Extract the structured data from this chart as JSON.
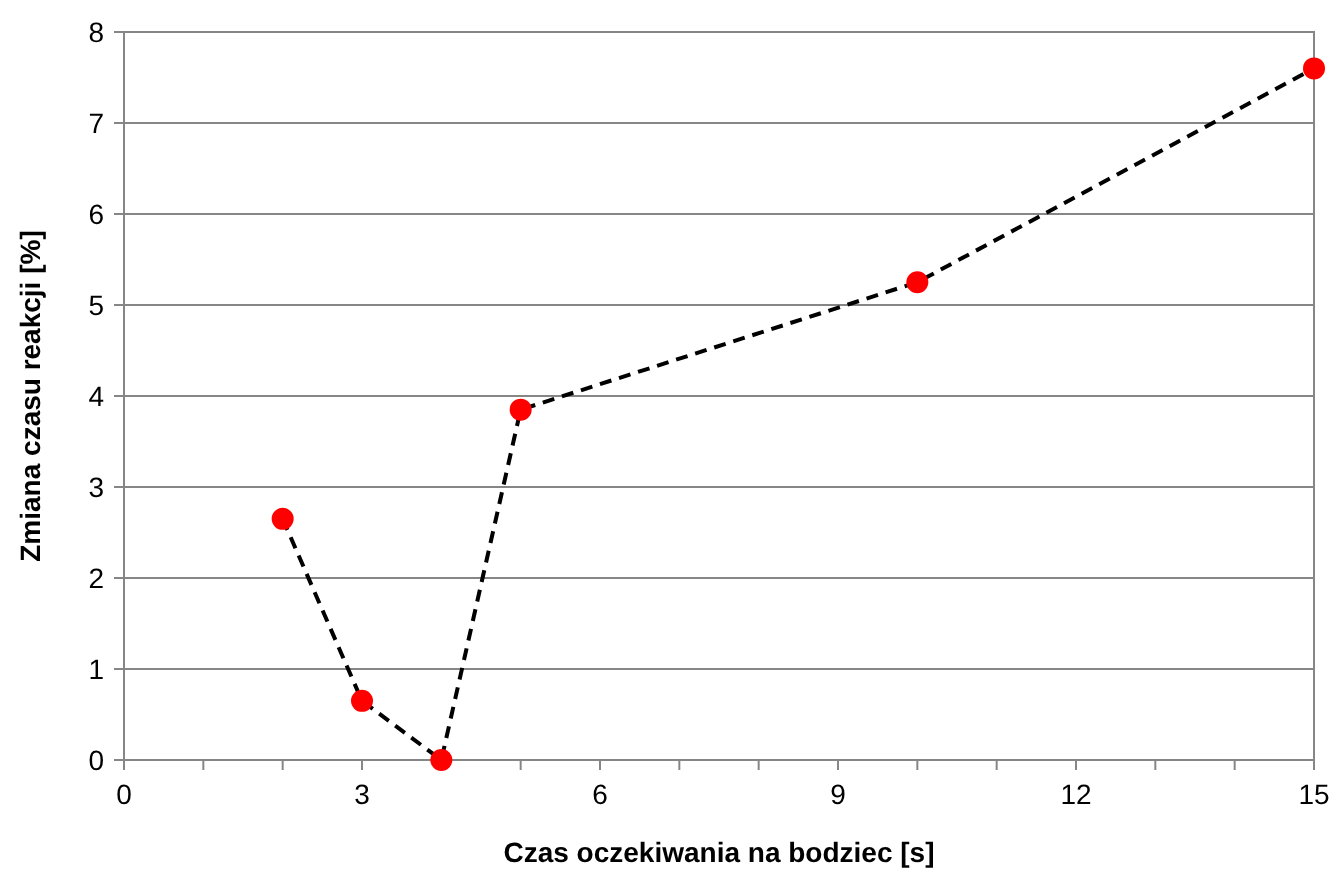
{
  "chart_data": {
    "type": "line",
    "xlabel": "Czas oczekiwania na bodziec [s]",
    "ylabel": "Zmiana czasu reakcji [%]",
    "x": [
      2,
      3,
      4,
      5,
      10,
      15
    ],
    "series": [
      {
        "color": "#000000",
        "marker": "none",
        "values": [
          2.65,
          0.65,
          0,
          3.85,
          5.25,
          7.6
        ]
      },
      {
        "type": "scatter",
        "color": "#ff0000",
        "marker": "circle",
        "values": [
          2.65,
          0.65,
          0,
          3.85,
          5.25,
          7.6
        ]
      }
    ],
    "line_style": "dashed",
    "xlim": [
      0,
      15
    ],
    "xticks": [
      0,
      {
        "value": 1,
        "label": null
      },
      {
        "value": 2,
        "label": null
      },
      3,
      {
        "value": 4,
        "label": null
      },
      {
        "value": 5,
        "label": null
      },
      6,
      {
        "value": 7,
        "label": null
      },
      {
        "value": 8,
        "label": null
      },
      9,
      {
        "value": 10,
        "label": null
      },
      {
        "value": 11,
        "label": null
      },
      12,
      {
        "value": 13,
        "label": null
      },
      {
        "value": 14,
        "label": null
      },
      15
    ],
    "ylim": [
      0,
      8
    ],
    "yticks": [
      0,
      1,
      2,
      3,
      4,
      5,
      6,
      7,
      8
    ],
    "grid": "y"
  }
}
